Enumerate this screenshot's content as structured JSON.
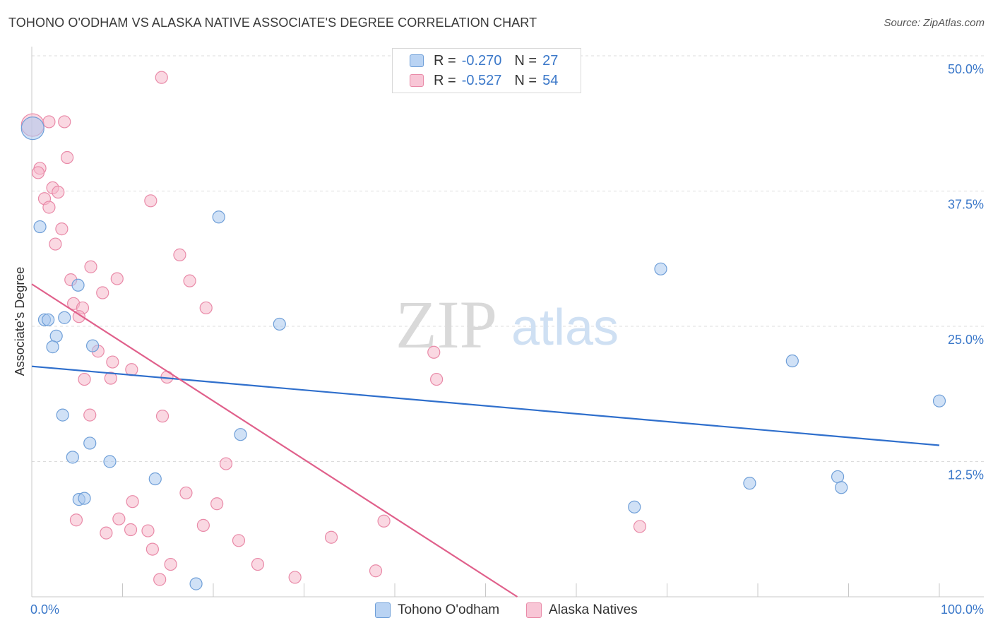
{
  "title": "TOHONO O'ODHAM VS ALASKA NATIVE ASSOCIATE'S DEGREE CORRELATION CHART",
  "source": "Source: ZipAtlas.com",
  "watermark": {
    "zip": "ZIP",
    "atlas": "atlas"
  },
  "legend": {
    "rows": [
      {
        "r_label": "R =",
        "r_value": "-0.270",
        "n_label": "N =",
        "n_value": "27"
      },
      {
        "r_label": "R =",
        "r_value": "-0.527",
        "n_label": "N =",
        "n_value": "54"
      }
    ]
  },
  "colors": {
    "blue_fill": "#a9c8ef",
    "blue_stroke": "#6f9fd8",
    "blue_line": "#2f6fcc",
    "pink_fill": "#f5b8cb",
    "pink_stroke": "#e98aa8",
    "pink_line": "#e0608b",
    "tick_label": "#3b78c9",
    "grid": "#dcdcdc"
  },
  "chart_data": {
    "type": "scatter",
    "title": "TOHONO O'ODHAM VS ALASKA NATIVE ASSOCIATE'S DEGREE CORRELATION CHART",
    "xlabel": "",
    "ylabel": "Associate's Degree",
    "xlim": [
      0,
      100
    ],
    "ylim": [
      0,
      50
    ],
    "x_tick_labels": [
      "0.0%",
      "100.0%"
    ],
    "y_ticks": [
      12.5,
      25.0,
      37.5,
      50.0
    ],
    "y_tick_labels": [
      "12.5%",
      "25.0%",
      "37.5%",
      "50.0%"
    ],
    "grid": true,
    "series": [
      {
        "name": "Tohono O'odham",
        "r": -0.27,
        "n": 27,
        "trend": {
          "x": [
            0,
            100
          ],
          "y": [
            21.3,
            14.0
          ]
        },
        "points": [
          {
            "x": 0.1,
            "y": 43.3,
            "big": true
          },
          {
            "x": 0.9,
            "y": 34.2
          },
          {
            "x": 1.4,
            "y": 25.6
          },
          {
            "x": 1.8,
            "y": 25.6
          },
          {
            "x": 2.7,
            "y": 24.1
          },
          {
            "x": 2.3,
            "y": 23.1
          },
          {
            "x": 3.6,
            "y": 25.8
          },
          {
            "x": 5.1,
            "y": 28.8
          },
          {
            "x": 6.7,
            "y": 23.2
          },
          {
            "x": 3.4,
            "y": 16.8
          },
          {
            "x": 6.4,
            "y": 14.2
          },
          {
            "x": 4.5,
            "y": 12.9
          },
          {
            "x": 8.6,
            "y": 12.5
          },
          {
            "x": 5.2,
            "y": 9.0
          },
          {
            "x": 5.8,
            "y": 9.1
          },
          {
            "x": 13.6,
            "y": 10.9
          },
          {
            "x": 18.1,
            "y": 1.2
          },
          {
            "x": 20.6,
            "y": 35.1
          },
          {
            "x": 23.0,
            "y": 15.0
          },
          {
            "x": 27.3,
            "y": 25.2
          },
          {
            "x": 69.3,
            "y": 30.3
          },
          {
            "x": 66.4,
            "y": 8.3
          },
          {
            "x": 79.1,
            "y": 10.5
          },
          {
            "x": 83.8,
            "y": 21.8
          },
          {
            "x": 88.8,
            "y": 11.1
          },
          {
            "x": 89.2,
            "y": 10.1
          },
          {
            "x": 100.0,
            "y": 18.1
          }
        ]
      },
      {
        "name": "Alaska Natives",
        "r": -0.527,
        "n": 54,
        "trend": {
          "x": [
            0,
            53.5
          ],
          "y": [
            28.9,
            0
          ]
        },
        "points": [
          {
            "x": 0.1,
            "y": 43.6,
            "big": true
          },
          {
            "x": 14.3,
            "y": 48.0
          },
          {
            "x": 1.9,
            "y": 43.9
          },
          {
            "x": 3.6,
            "y": 43.9
          },
          {
            "x": 3.9,
            "y": 40.6
          },
          {
            "x": 0.9,
            "y": 39.6
          },
          {
            "x": 0.7,
            "y": 39.2
          },
          {
            "x": 2.3,
            "y": 37.8
          },
          {
            "x": 2.9,
            "y": 37.4
          },
          {
            "x": 1.4,
            "y": 36.8
          },
          {
            "x": 1.9,
            "y": 36.0
          },
          {
            "x": 13.1,
            "y": 36.6
          },
          {
            "x": 3.3,
            "y": 34.0
          },
          {
            "x": 2.6,
            "y": 32.6
          },
          {
            "x": 16.3,
            "y": 31.6
          },
          {
            "x": 6.5,
            "y": 30.5
          },
          {
            "x": 4.3,
            "y": 29.3
          },
          {
            "x": 9.4,
            "y": 29.4
          },
          {
            "x": 17.4,
            "y": 29.2
          },
          {
            "x": 7.8,
            "y": 28.1
          },
          {
            "x": 4.6,
            "y": 27.1
          },
          {
            "x": 5.6,
            "y": 26.7
          },
          {
            "x": 19.2,
            "y": 26.7
          },
          {
            "x": 5.2,
            "y": 25.9
          },
          {
            "x": 7.3,
            "y": 22.7
          },
          {
            "x": 8.9,
            "y": 21.7
          },
          {
            "x": 11.0,
            "y": 21.0
          },
          {
            "x": 5.8,
            "y": 20.1
          },
          {
            "x": 8.7,
            "y": 20.2
          },
          {
            "x": 14.9,
            "y": 20.3
          },
          {
            "x": 44.3,
            "y": 22.6
          },
          {
            "x": 44.6,
            "y": 20.1
          },
          {
            "x": 6.4,
            "y": 16.8
          },
          {
            "x": 14.4,
            "y": 16.7
          },
          {
            "x": 21.4,
            "y": 12.3
          },
          {
            "x": 17.0,
            "y": 9.6
          },
          {
            "x": 11.1,
            "y": 8.8
          },
          {
            "x": 20.4,
            "y": 8.6
          },
          {
            "x": 9.6,
            "y": 7.2
          },
          {
            "x": 4.9,
            "y": 7.1
          },
          {
            "x": 18.9,
            "y": 6.6
          },
          {
            "x": 10.9,
            "y": 6.2
          },
          {
            "x": 12.8,
            "y": 6.1
          },
          {
            "x": 8.2,
            "y": 5.9
          },
          {
            "x": 38.8,
            "y": 7.0
          },
          {
            "x": 33.0,
            "y": 5.5
          },
          {
            "x": 22.8,
            "y": 5.2
          },
          {
            "x": 67.0,
            "y": 6.5
          },
          {
            "x": 13.3,
            "y": 4.4
          },
          {
            "x": 15.3,
            "y": 3.0
          },
          {
            "x": 24.9,
            "y": 3.0
          },
          {
            "x": 37.9,
            "y": 2.4
          },
          {
            "x": 29.0,
            "y": 1.8
          },
          {
            "x": 14.1,
            "y": 1.6
          }
        ]
      }
    ]
  }
}
